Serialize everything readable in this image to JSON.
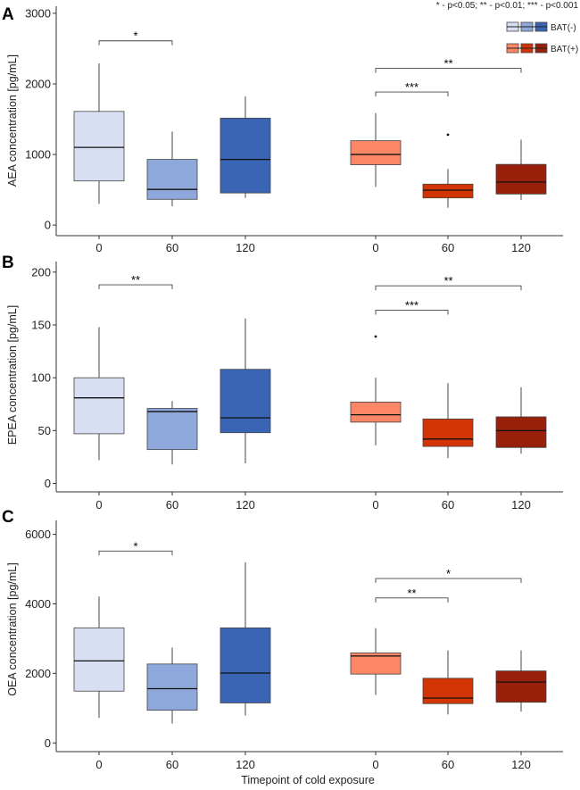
{
  "figure": {
    "significance_note": "* - p<0.05; ** - p<0.01; *** - p<0.001",
    "xlabel": "Timepoint of cold exposure"
  },
  "legend": [
    {
      "label": "BAT(-)",
      "colors": [
        "#d9dff2",
        "#8ea8dc",
        "#3a65b5"
      ]
    },
    {
      "label": "BAT(+)",
      "colors": [
        "#fc8766",
        "#d23405",
        "#98200b"
      ]
    }
  ],
  "colors": {
    "bat_neg": [
      "#d9dff2",
      "#8ea8dc",
      "#3a65b5"
    ],
    "bat_pos": [
      "#fc8766",
      "#d23405",
      "#98200b"
    ],
    "axis": "#333333",
    "line": "#444444"
  },
  "chart_data": [
    {
      "type": "box",
      "panel": "A",
      "ylabel": "AEA concentration [pg/mL]",
      "ylim": [
        -150,
        3100
      ],
      "yticks": [
        0,
        1000,
        2000,
        3000
      ],
      "categories": [
        "0",
        "60",
        "120",
        "0",
        "60",
        "120"
      ],
      "groups": [
        "BAT(-)",
        "BAT(-)",
        "BAT(-)",
        "BAT(+)",
        "BAT(+)",
        "BAT(+)"
      ],
      "boxes": [
        {
          "min": 300,
          "q1": 625,
          "median": 1100,
          "q3": 1610,
          "max": 2290,
          "outliers": []
        },
        {
          "min": 265,
          "q1": 365,
          "median": 505,
          "q3": 930,
          "max": 1325,
          "outliers": []
        },
        {
          "min": 385,
          "q1": 455,
          "median": 930,
          "q3": 1515,
          "max": 1825,
          "outliers": []
        },
        {
          "min": 540,
          "q1": 855,
          "median": 1000,
          "q3": 1195,
          "max": 1585,
          "outliers": []
        },
        {
          "min": 245,
          "q1": 385,
          "median": 495,
          "q3": 580,
          "max": 795,
          "outliers": [
            1280
          ]
        },
        {
          "min": 355,
          "q1": 440,
          "median": 610,
          "q3": 860,
          "max": 1210,
          "outliers": []
        }
      ],
      "significance": [
        {
          "from": 0,
          "to": 1,
          "label": "*",
          "y": 2610
        },
        {
          "from": 3,
          "to": 4,
          "label": "***",
          "y": 1885
        },
        {
          "from": 3,
          "to": 5,
          "label": "**",
          "y": 2220
        }
      ]
    },
    {
      "type": "box",
      "panel": "B",
      "ylabel": "EPEA concentration [pg/mL]",
      "ylim": [
        -8,
        210
      ],
      "yticks": [
        0,
        50,
        100,
        150,
        200
      ],
      "categories": [
        "0",
        "60",
        "120",
        "0",
        "60",
        "120"
      ],
      "groups": [
        "BAT(-)",
        "BAT(-)",
        "BAT(-)",
        "BAT(+)",
        "BAT(+)",
        "BAT(+)"
      ],
      "boxes": [
        {
          "min": 22,
          "q1": 47,
          "median": 81,
          "q3": 100,
          "max": 148,
          "outliers": []
        },
        {
          "min": 18,
          "q1": 32,
          "median": 68,
          "q3": 71,
          "max": 78,
          "outliers": []
        },
        {
          "min": 19,
          "q1": 48,
          "median": 62,
          "q3": 108,
          "max": 156,
          "outliers": []
        },
        {
          "min": 36,
          "q1": 58,
          "median": 65,
          "q3": 77,
          "max": 100,
          "outliers": [
            139
          ]
        },
        {
          "min": 24,
          "q1": 35,
          "median": 42,
          "q3": 61,
          "max": 95,
          "outliers": []
        },
        {
          "min": 28,
          "q1": 34,
          "median": 50,
          "q3": 63,
          "max": 91,
          "outliers": []
        }
      ],
      "significance": [
        {
          "from": 0,
          "to": 1,
          "label": "**",
          "y": 188
        },
        {
          "from": 3,
          "to": 4,
          "label": "***",
          "y": 164
        },
        {
          "from": 3,
          "to": 5,
          "label": "**",
          "y": 187
        }
      ]
    },
    {
      "type": "box",
      "panel": "C",
      "ylabel": "OEA concentration [pg/mL]",
      "ylim": [
        -250,
        6400
      ],
      "yticks": [
        0,
        2000,
        4000,
        6000
      ],
      "categories": [
        "0",
        "60",
        "120",
        "0",
        "60",
        "120"
      ],
      "groups": [
        "BAT(-)",
        "BAT(-)",
        "BAT(-)",
        "BAT(+)",
        "BAT(+)",
        "BAT(+)"
      ],
      "boxes": [
        {
          "min": 720,
          "q1": 1490,
          "median": 2360,
          "q3": 3310,
          "max": 4210,
          "outliers": []
        },
        {
          "min": 560,
          "q1": 940,
          "median": 1560,
          "q3": 2270,
          "max": 2740,
          "outliers": []
        },
        {
          "min": 790,
          "q1": 1150,
          "median": 2010,
          "q3": 3310,
          "max": 5200,
          "outliers": []
        },
        {
          "min": 1380,
          "q1": 1980,
          "median": 2500,
          "q3": 2590,
          "max": 3300,
          "outliers": []
        },
        {
          "min": 820,
          "q1": 1130,
          "median": 1290,
          "q3": 1860,
          "max": 2660,
          "outliers": []
        },
        {
          "min": 900,
          "q1": 1170,
          "median": 1750,
          "q3": 2070,
          "max": 2660,
          "outliers": []
        }
      ],
      "significance": [
        {
          "from": 0,
          "to": 1,
          "label": "*",
          "y": 5520
        },
        {
          "from": 3,
          "to": 4,
          "label": "**",
          "y": 4170
        },
        {
          "from": 3,
          "to": 5,
          "label": "*",
          "y": 4730
        }
      ]
    }
  ]
}
